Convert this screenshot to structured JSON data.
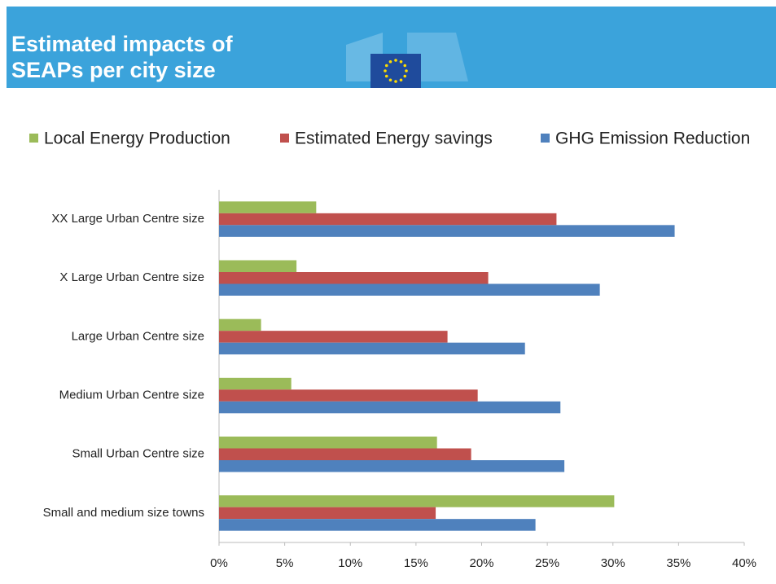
{
  "chart_data": {
    "type": "hbar",
    "title": "Estimated impacts of SEAPs per city size",
    "categories": [
      "XX Large Urban Centre size",
      "X Large Urban Centre size",
      "Large Urban Centre size",
      "Medium Urban Centre size",
      "Small Urban Centre size",
      "Small and medium size towns"
    ],
    "series": [
      {
        "name": "Local Energy Production",
        "color": "#9bbb59",
        "values": [
          7.4,
          5.9,
          3.2,
          5.5,
          16.6,
          30.1
        ]
      },
      {
        "name": "Estimated Energy savings",
        "color": "#c0504d",
        "values": [
          25.7,
          20.5,
          17.4,
          19.7,
          19.2,
          16.5
        ]
      },
      {
        "name": "GHG Emission Reduction",
        "color": "#4f81bd",
        "values": [
          34.7,
          29.0,
          23.3,
          26.0,
          26.3,
          24.1
        ]
      }
    ],
    "xlim": [
      0,
      40
    ],
    "xticks": [
      {
        "value": 0,
        "label": "0%"
      },
      {
        "value": 5,
        "label": "5%"
      },
      {
        "value": 10,
        "label": "10%"
      },
      {
        "value": 15,
        "label": "15%"
      },
      {
        "value": 20,
        "label": "20%"
      },
      {
        "value": 25,
        "label": "25%"
      },
      {
        "value": 30,
        "label": "30%"
      },
      {
        "value": 35,
        "label": "35%"
      },
      {
        "value": 40,
        "label": "40%"
      }
    ],
    "legend": "top"
  }
}
